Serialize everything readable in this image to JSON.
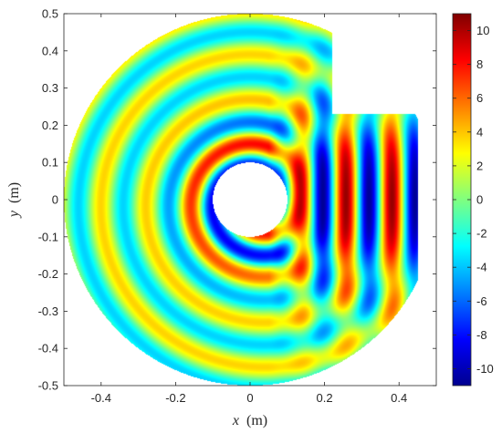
{
  "chart_data": {
    "type": "heatmap",
    "title": "",
    "xlabel_var": "x",
    "xlabel_unit": "(m)",
    "ylabel_var": "y",
    "ylabel_unit": "(m)",
    "xlim": [
      -0.5,
      0.5
    ],
    "ylim": [
      -0.5,
      0.5
    ],
    "xticks": [
      -0.4,
      -0.2,
      0,
      0.2,
      0.4
    ],
    "xtick_labels": [
      "-0.4",
      "-0.2",
      "0",
      "0.2",
      "0.4"
    ],
    "yticks": [
      -0.5,
      -0.4,
      -0.3,
      -0.2,
      -0.1,
      0,
      0.1,
      0.2,
      0.3,
      0.4,
      0.5
    ],
    "ytick_labels": [
      "-0.5",
      "-0.4",
      "-0.3",
      "-0.2",
      "-0.1",
      "0",
      "0.1",
      "0.2",
      "0.3",
      "0.4",
      "0.5"
    ],
    "colorbar": {
      "range": [
        -11,
        11
      ],
      "ticks": [
        10,
        8,
        6,
        4,
        2,
        0,
        -2,
        -4,
        -6,
        -8,
        -10
      ],
      "tick_labels": [
        "10",
        "8",
        "6",
        "4",
        "2",
        "0",
        "-2",
        "-4",
        "-6",
        "-8",
        "-10"
      ],
      "colormap": "jet"
    },
    "domain": {
      "outer_radius": 0.5,
      "hole_center": [
        0,
        0
      ],
      "hole_radius": 0.1,
      "notch_x_min": 0.22,
      "notch_y_min": 0.23,
      "right_flat_x": 0.45
    },
    "field": {
      "description_type": "wave pattern",
      "wavelength": 0.12,
      "amplitude_max": 10.5
    }
  }
}
